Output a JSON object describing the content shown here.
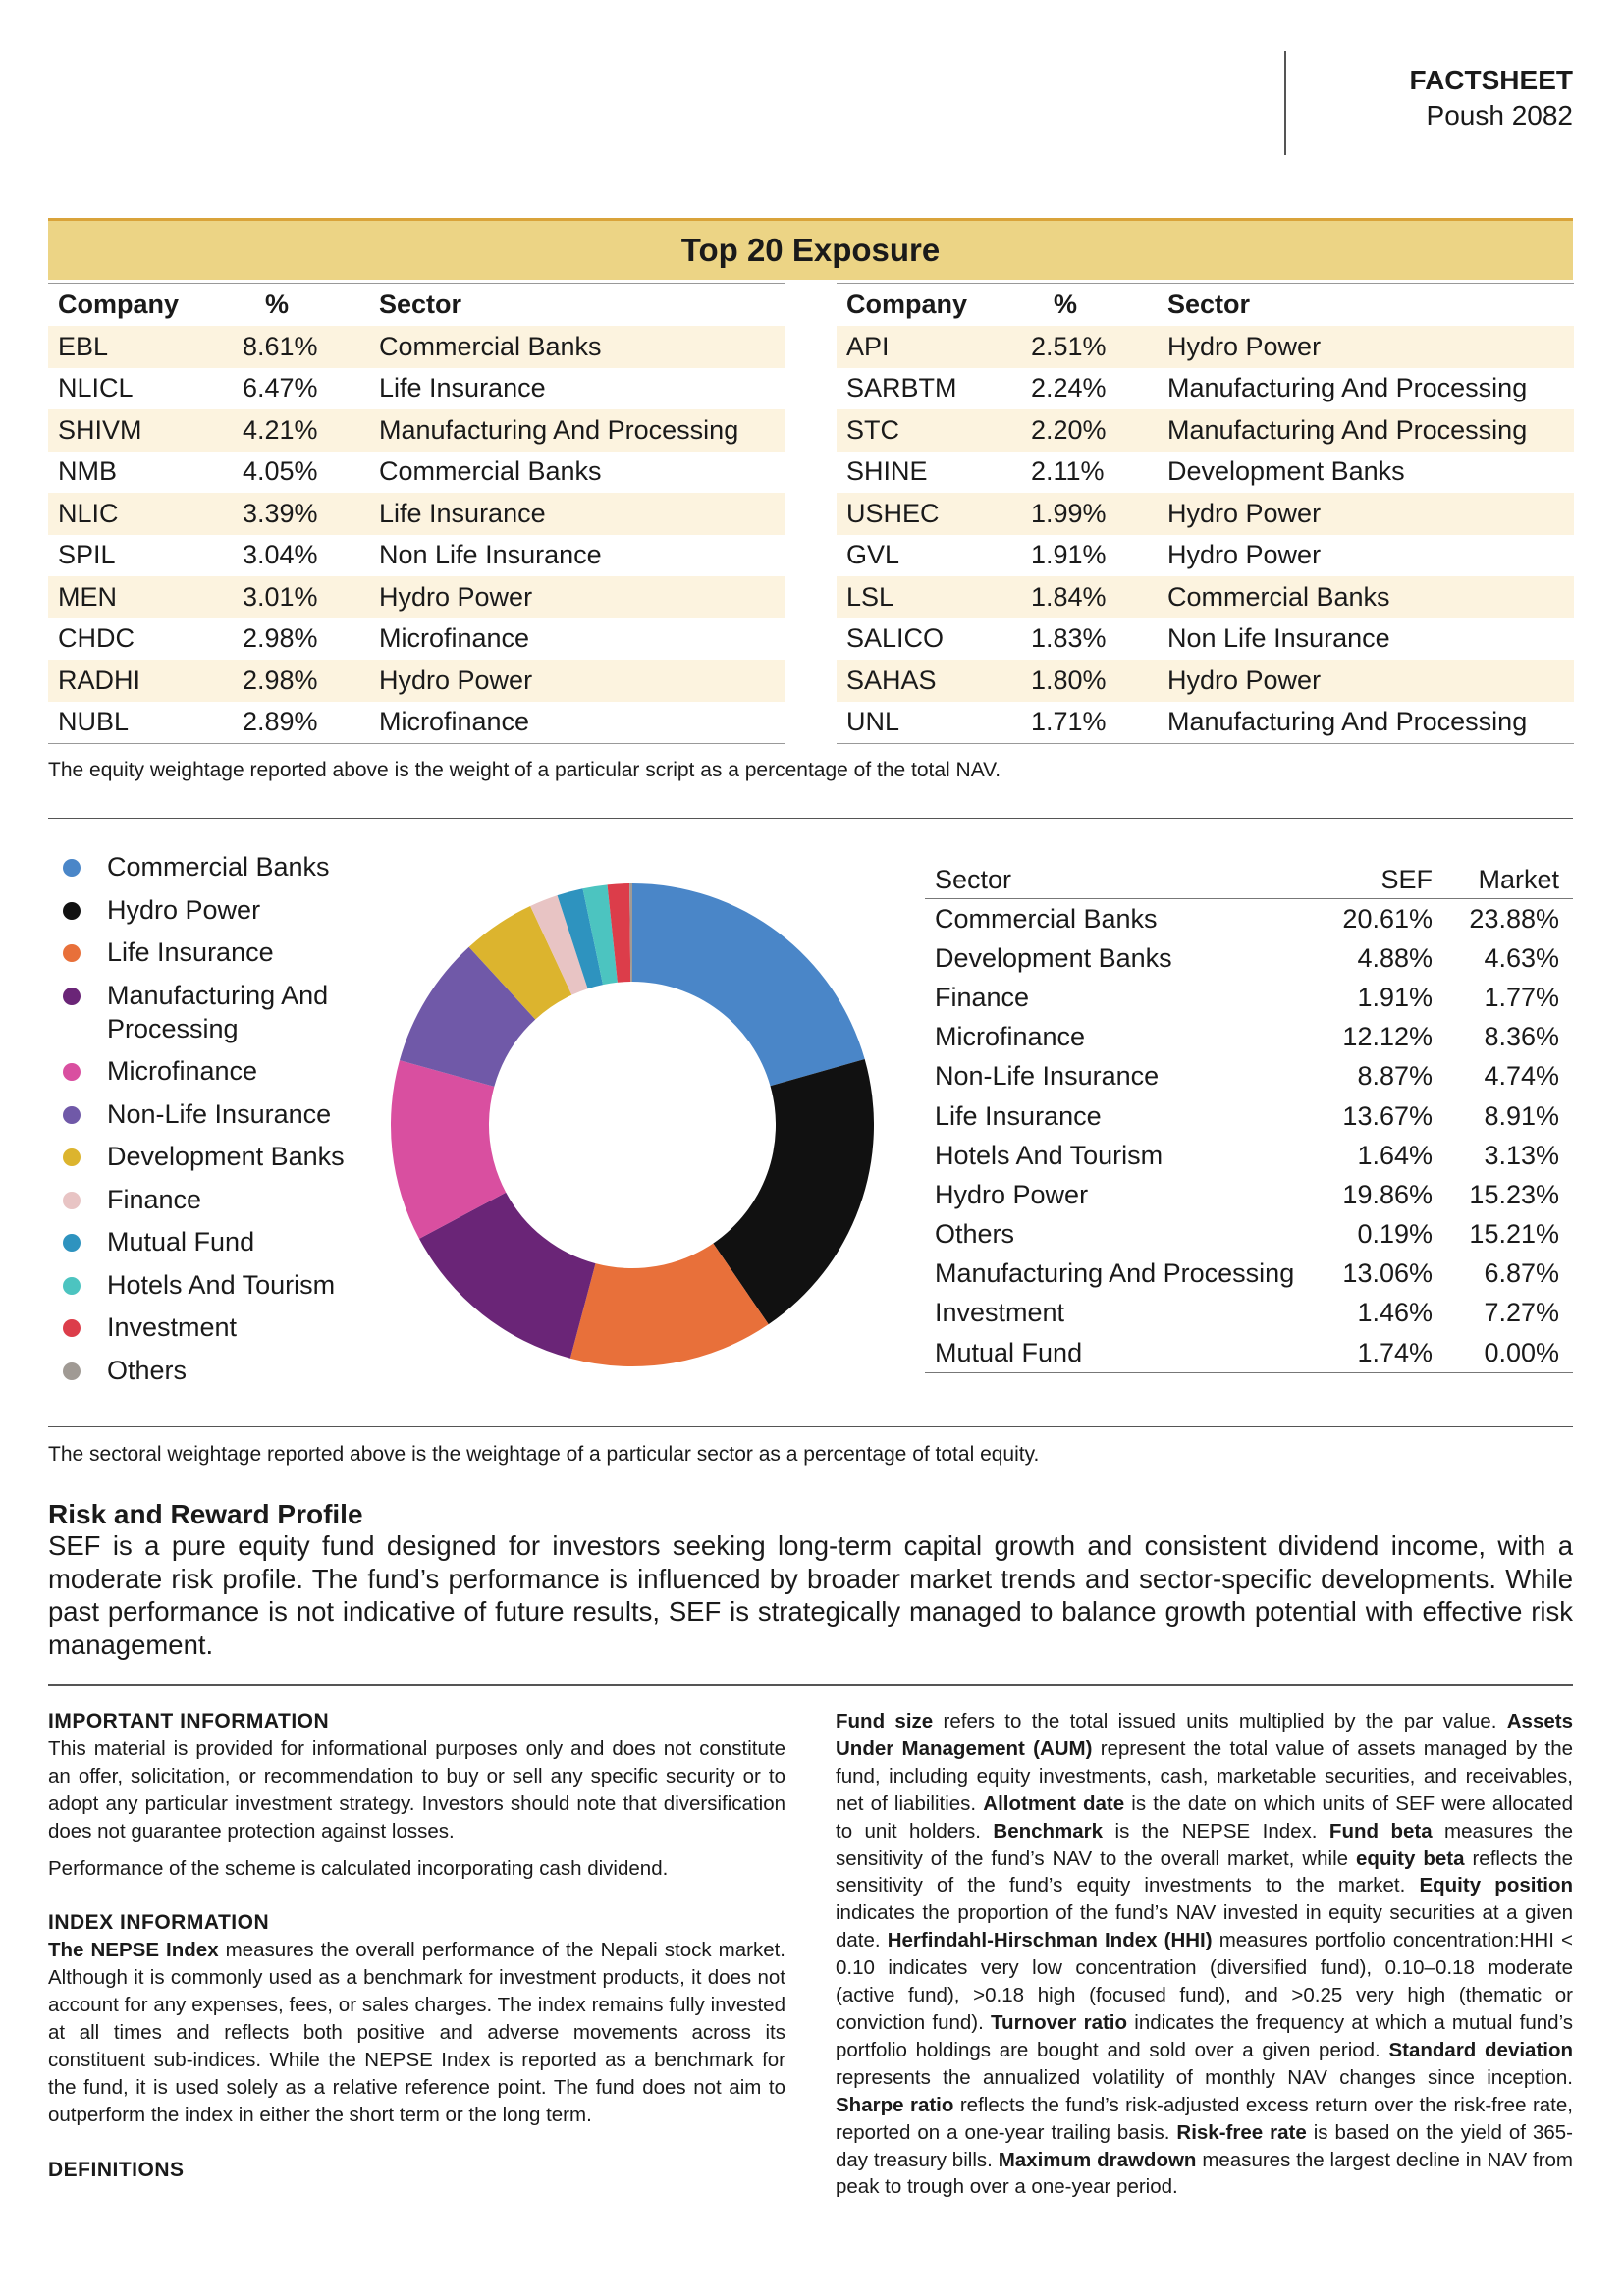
{
  "header": {
    "title": "FACTSHEET",
    "subtitle": "Poush 2082"
  },
  "top20": {
    "title": "Top 20 Exposure",
    "tables": [
      {
        "columns": [
          "Company",
          "%",
          "Sector"
        ],
        "rows": [
          [
            "EBL",
            "8.61%",
            "Commercial Banks"
          ],
          [
            "NLICL",
            "6.47%",
            "Life Insurance"
          ],
          [
            "SHIVM",
            "4.21%",
            "Manufacturing And Processing"
          ],
          [
            "NMB",
            "4.05%",
            "Commercial Banks"
          ],
          [
            "NLIC",
            "3.39%",
            "Life Insurance"
          ],
          [
            "SPIL",
            "3.04%",
            "Non Life Insurance"
          ],
          [
            "MEN",
            "3.01%",
            "Hydro Power"
          ],
          [
            "CHDC",
            "2.98%",
            "Microfinance"
          ],
          [
            "RADHI",
            "2.98%",
            "Hydro Power"
          ],
          [
            "NUBL",
            "2.89%",
            "Microfinance"
          ]
        ]
      },
      {
        "columns": [
          "Company",
          "%",
          "Sector"
        ],
        "rows": [
          [
            "API",
            "2.51%",
            "Hydro Power"
          ],
          [
            "SARBTM",
            "2.24%",
            "Manufacturing And Processing"
          ],
          [
            "STC",
            "2.20%",
            "Manufacturing And Processing"
          ],
          [
            "SHINE",
            "2.11%",
            "Development Banks"
          ],
          [
            "USHEC",
            "1.99%",
            "Hydro Power"
          ],
          [
            "GVL",
            "1.91%",
            "Hydro Power"
          ],
          [
            "LSL",
            "1.84%",
            "Commercial Banks"
          ],
          [
            "SALICO",
            "1.83%",
            "Non Life Insurance"
          ],
          [
            "SAHAS",
            "1.80%",
            "Hydro Power"
          ],
          [
            "UNL",
            "1.71%",
            "Manufacturing And Processing"
          ]
        ]
      }
    ],
    "note": "The equity weightage reported above is the weight of a particular script as a percentage of the total NAV."
  },
  "chart_data": {
    "type": "pie",
    "donut": true,
    "categories": [
      "Commercial Banks",
      "Hydro Power",
      "Life Insurance",
      "Manufacturing And Processing",
      "Microfinance",
      "Non-Life Insurance",
      "Development Banks",
      "Finance",
      "Mutual Fund",
      "Hotels And Tourism",
      "Investment",
      "Others"
    ],
    "values": [
      20.61,
      19.86,
      13.67,
      13.06,
      12.12,
      8.87,
      4.88,
      1.91,
      1.74,
      1.64,
      1.46,
      0.19
    ],
    "colors": [
      "#4a86c8",
      "#111111",
      "#e8703a",
      "#6a2577",
      "#d94fa0",
      "#7059a8",
      "#dcb42e",
      "#e8c4c4",
      "#2e93bf",
      "#4cc4c0",
      "#dc3d4a",
      "#a09a94"
    ]
  },
  "sector_table": {
    "columns": [
      "Sector",
      "SEF",
      "Market"
    ],
    "rows": [
      [
        "Commercial Banks",
        "20.61%",
        "23.88%"
      ],
      [
        "Development Banks",
        "4.88%",
        "4.63%"
      ],
      [
        "Finance",
        "1.91%",
        "1.77%"
      ],
      [
        "Microfinance",
        "12.12%",
        "8.36%"
      ],
      [
        "Non-Life Insurance",
        "8.87%",
        "4.74%"
      ],
      [
        "Life Insurance",
        "13.67%",
        "8.91%"
      ],
      [
        "Hotels And Tourism",
        "1.64%",
        "3.13%"
      ],
      [
        "Hydro Power",
        "19.86%",
        "15.23%"
      ],
      [
        "Others",
        "0.19%",
        "15.21%"
      ],
      [
        "Manufacturing And Processing",
        "13.06%",
        "6.87%"
      ],
      [
        "Investment",
        "1.46%",
        "7.27%"
      ],
      [
        "Mutual Fund",
        "1.74%",
        "0.00%"
      ]
    ],
    "note": "The sectoral weightage reported above is the weightage of a particular sector as a percentage of total equity."
  },
  "risk": {
    "title": "Risk and Reward Profile",
    "text": "SEF is a pure equity fund designed for investors seeking long-term capital growth and consistent dividend income, with a moderate risk profile. The fund’s performance is influenced by broader market trends and sector-specific developments. While past performance is not indicative of future results, SEF is strategically managed to balance growth potential with effective risk management."
  },
  "important": {
    "title": "IMPORTANT INFORMATION",
    "paragraphs": [
      "This material is provided for informational purposes only and does not constitute an offer, solicitation, or recommendation to buy or sell any specific security or to adopt any particular investment strategy. Investors should note that diversification does not guarantee protection against losses.",
      "Performance of the scheme is calculated incorporating cash dividend."
    ]
  },
  "index": {
    "title": "INDEX INFORMATION",
    "term": "The NEPSE Index",
    "text": "measures the overall performance of the Nepali stock market. Although it is commonly used as a benchmark for investment products, it does not account for any expenses, fees, or sales charges. The index remains fully invested at all times and reflects both positive and adverse movements across its constituent sub-indices. While the NEPSE Index is reported as a benchmark for the fund, it is used solely as a relative reference point. The fund does not aim to outperform the index in either the short term or the long term."
  },
  "definitions": {
    "title": "DEFINITIONS",
    "items": [
      {
        "term": "Fund size",
        "text": "refers to the total issued units multiplied by the par value."
      },
      {
        "term": "Assets Under Management (AUM)",
        "text": "represent the total value of assets managed by the fund, including equity investments, cash, marketable securities, and receivables, net of liabilities."
      },
      {
        "term": "Allotment date",
        "text": "is the date on which units of SEF were allocated to unit holders."
      },
      {
        "term": "Benchmark",
        "text": "is the NEPSE Index."
      },
      {
        "term": "Fund beta",
        "text": "measures the sensitivity of the fund’s NAV to the overall market, while"
      },
      {
        "term": "equity beta",
        "text": "reflects the sensitivity of the fund’s equity investments to the market."
      },
      {
        "term": "Equity position",
        "text": "indicates the proportion of the fund’s NAV invested in equity securities at a given date."
      },
      {
        "term": "Herfindahl-Hirschman Index (HHI)",
        "text": "measures portfolio concentration:HHI < 0.10 indicates very low concentration (diversified fund), 0.10–0.18 moderate (active fund), >0.18 high (focused fund), and >0.25 very high (thematic or conviction fund)."
      },
      {
        "term": "Turnover ratio",
        "text": "indicates the frequency at which a mutual fund’s portfolio holdings are bought and sold over a given period."
      },
      {
        "term": "Standard deviation",
        "text": "represents the annualized volatility of monthly NAV changes since inception."
      },
      {
        "term": "Sharpe ratio",
        "text": "reflects the fund’s risk-adjusted excess return over the risk-free rate, reported on a one-year trailing basis."
      },
      {
        "term": "Risk-free rate",
        "text": "is based on the yield of 365-day treasury bills."
      },
      {
        "term": "Maximum drawdown",
        "text": "measures the largest decline in NAV from peak to trough over a one-year period."
      }
    ]
  }
}
